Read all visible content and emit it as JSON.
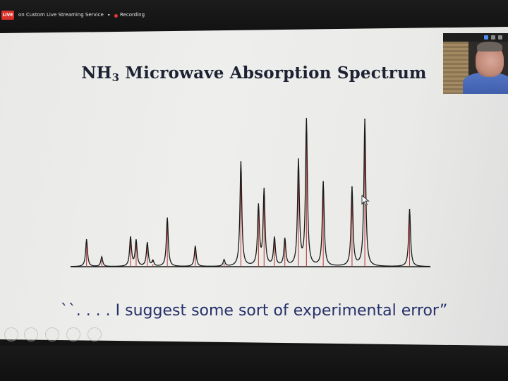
{
  "topbar": {
    "live_badge": "LIVE",
    "stream_label": "on Custom Live Streaming Service",
    "stream_caret": "▾",
    "recording_label": "Recording"
  },
  "slide": {
    "title_prefix": "NH",
    "title_subscript": "3",
    "title_rest": " Microwave Absorption Spectrum",
    "quote": "``. . . . I suggest some sort of experimental error”"
  },
  "colors": {
    "accent_live": "#d9302a",
    "spectrum_black": "#1a1a1a",
    "spectrum_red": "#b8332c",
    "quote_blue": "#26306a"
  },
  "icons": {
    "cursor": "pointer-cursor-icon",
    "video_tools": [
      "grid-view-icon",
      "minimize-icon",
      "speaker-view-icon"
    ],
    "presenter_tools": [
      "cursor-tool-icon",
      "pen-tool-icon",
      "eraser-tool-icon",
      "zoom-tool-icon",
      "more-tool-icon"
    ]
  },
  "chart_data": {
    "type": "line",
    "x": [
      2,
      3.9,
      7.5,
      8.2,
      9.6,
      10.3,
      12.1,
      15.6,
      19.2,
      21.3,
      23.5,
      24.2,
      25.5,
      26.8,
      28.5,
      29.5,
      31.6,
      35.2,
      36.8,
      42.4
    ],
    "series": [
      {
        "values": [
          0.25,
          0.09,
          0.27,
          0.24,
          0.22,
          0.05,
          0.45,
          0.19,
          0.06,
          0.97,
          0.55,
          0.7,
          0.26,
          0.25,
          0.97,
          1.35,
          0.78,
          0.73,
          1.36,
          0.53
        ]
      }
    ],
    "stick_lines_x": [
      2,
      3.9,
      7.5,
      8.2,
      9.6,
      10.3,
      12.1,
      15.6,
      19.2,
      21.3,
      23.5,
      24.2,
      25.5,
      26.8,
      28.5,
      29.5,
      31.6,
      35.2,
      36.8,
      42.4
    ],
    "xlim": [
      0,
      45
    ],
    "ylim": [
      0,
      1.5
    ],
    "grid": false,
    "legend": "none"
  }
}
